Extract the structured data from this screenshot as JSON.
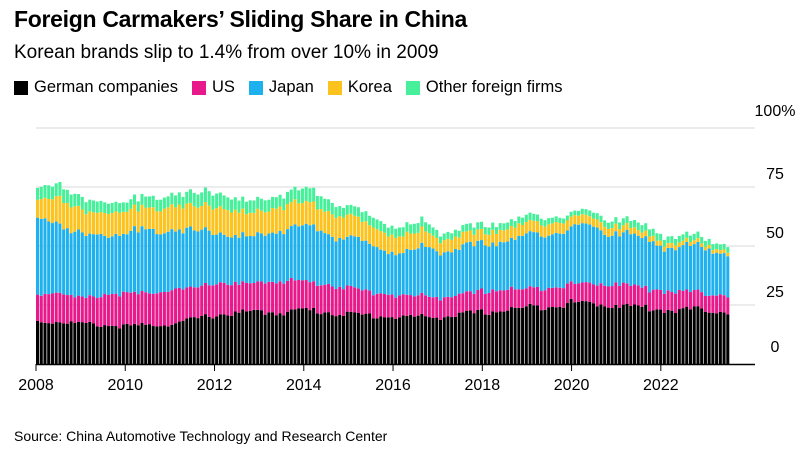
{
  "title": "Foreign Carmakers’ Sliding Share in China",
  "subtitle": "Korean brands slip to 1.4% from over 10% in 2009",
  "source": "Source: China Automotive Technology and Research Center",
  "colors": {
    "german": "#000000",
    "us": "#e8198b",
    "japan": "#1fb0ee",
    "korea": "#fcc31f",
    "other": "#46f09a",
    "grid": "#d9d9d9",
    "baseline": "#000000"
  },
  "chart_data": {
    "type": "bar",
    "stacked": true,
    "x_start": "2008-01",
    "x_end": "2023-06",
    "x_ticks": [
      "2008",
      "2010",
      "2012",
      "2014",
      "2016",
      "2018",
      "2020",
      "2022"
    ],
    "x_tick_years": [
      2008,
      2010,
      2012,
      2014,
      2016,
      2018,
      2020,
      2022
    ],
    "ylim": [
      0,
      100
    ],
    "y_ticks": [
      0,
      25,
      50,
      75,
      100
    ],
    "y_tick_labels": [
      "0",
      "25",
      "50",
      "75",
      "100%"
    ],
    "legend": [
      "German companies",
      "US",
      "Japan",
      "Korea",
      "Other foreign firms"
    ],
    "series_keys": [
      "german",
      "us",
      "japan",
      "korea",
      "other"
    ],
    "keyframes": [
      {
        "t": 2008.0,
        "german": 18,
        "us": 12,
        "japan": 32,
        "korea": 8,
        "other": 5
      },
      {
        "t": 2008.5,
        "german": 18,
        "us": 12,
        "japan": 30,
        "korea": 11,
        "other": 6
      },
      {
        "t": 2009.0,
        "german": 17,
        "us": 11,
        "japan": 26,
        "korea": 10,
        "other": 5
      },
      {
        "t": 2010.0,
        "german": 16,
        "us": 14,
        "japan": 26,
        "korea": 9,
        "other": 4
      },
      {
        "t": 2011.0,
        "german": 17,
        "us": 14,
        "japan": 26,
        "korea": 10,
        "other": 5
      },
      {
        "t": 2012.0,
        "german": 21,
        "us": 13,
        "japan": 22,
        "korea": 11,
        "other": 6
      },
      {
        "t": 2012.8,
        "german": 22,
        "us": 12,
        "japan": 19,
        "korea": 10,
        "other": 5
      },
      {
        "t": 2013.5,
        "german": 22,
        "us": 13,
        "japan": 22,
        "korea": 10,
        "other": 5
      },
      {
        "t": 2014.0,
        "german": 23,
        "us": 12,
        "japan": 23,
        "korea": 10,
        "other": 6
      },
      {
        "t": 2015.0,
        "german": 21,
        "us": 11,
        "japan": 21,
        "korea": 9,
        "other": 4
      },
      {
        "t": 2016.0,
        "german": 20,
        "us": 9,
        "japan": 18,
        "korea": 7,
        "other": 4
      },
      {
        "t": 2016.6,
        "german": 20,
        "us": 9,
        "japan": 20,
        "korea": 7,
        "other": 4
      },
      {
        "t": 2017.0,
        "german": 20,
        "us": 8,
        "japan": 20,
        "korea": 5,
        "other": 3
      },
      {
        "t": 2018.0,
        "german": 22,
        "us": 9,
        "japan": 20,
        "korea": 5,
        "other": 3
      },
      {
        "t": 2019.0,
        "german": 24,
        "us": 8,
        "japan": 22,
        "korea": 5,
        "other": 3
      },
      {
        "t": 2020.0,
        "german": 26,
        "us": 8,
        "japan": 24,
        "korea": 4,
        "other": 2
      },
      {
        "t": 2021.0,
        "german": 25,
        "us": 9,
        "japan": 22,
        "korea": 3,
        "other": 3
      },
      {
        "t": 2022.0,
        "german": 23,
        "us": 8,
        "japan": 19,
        "korea": 2,
        "other": 3
      },
      {
        "t": 2023.0,
        "german": 23,
        "us": 7,
        "japan": 19,
        "korea": 1.5,
        "other": 2.5
      },
      {
        "t": 2023.5,
        "german": 22,
        "us": 7,
        "japan": 18,
        "korea": 1.4,
        "other": 2.5
      }
    ]
  }
}
